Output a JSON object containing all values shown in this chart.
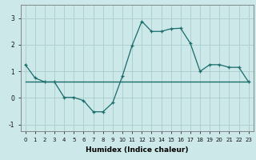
{
  "title": "",
  "xlabel": "Humidex (Indice chaleur)",
  "background_color": "#cce8e8",
  "grid_color": "#aacccc",
  "line_color": "#1a6b6b",
  "x_data": [
    0,
    1,
    2,
    3,
    4,
    5,
    6,
    7,
    8,
    9,
    10,
    11,
    12,
    13,
    14,
    15,
    16,
    17,
    18,
    19,
    20,
    21,
    22,
    23
  ],
  "y_data": [
    1.25,
    0.75,
    0.6,
    0.6,
    0.02,
    0.02,
    -0.1,
    -0.52,
    -0.52,
    -0.18,
    0.82,
    1.97,
    2.88,
    2.5,
    2.5,
    2.6,
    2.62,
    2.05,
    1.0,
    1.25,
    1.25,
    1.15,
    1.15,
    0.6
  ],
  "trend_x": [
    0,
    23
  ],
  "trend_y": [
    0.62,
    0.62
  ],
  "xlim": [
    -0.5,
    23.5
  ],
  "ylim": [
    -1.25,
    3.5
  ],
  "yticks": [
    -1,
    0,
    1,
    2,
    3
  ],
  "xticks": [
    0,
    1,
    2,
    3,
    4,
    5,
    6,
    7,
    8,
    9,
    10,
    11,
    12,
    13,
    14,
    15,
    16,
    17,
    18,
    19,
    20,
    21,
    22,
    23
  ],
  "xlabel_fontsize": 6.5,
  "tick_fontsize": 5.0
}
